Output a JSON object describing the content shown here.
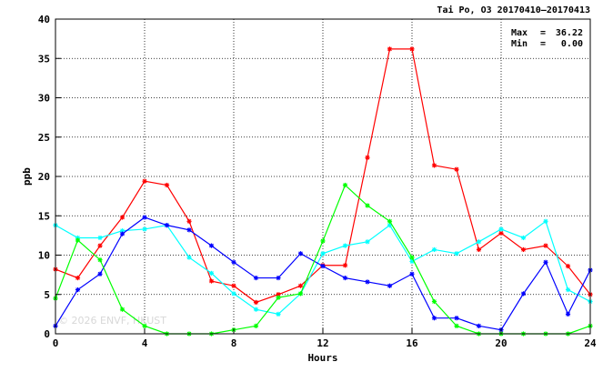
{
  "chart_data": {
    "type": "line",
    "title": "Tai Po, O3 20170410–20170413",
    "xlabel": "Hours",
    "ylabel": "ppb",
    "xlim": [
      0,
      24
    ],
    "ylim": [
      0,
      40
    ],
    "x_ticks": [
      "0",
      "4",
      "8",
      "12",
      "16",
      "20",
      "24"
    ],
    "y_ticks": [
      "0",
      "5",
      "10",
      "15",
      "20",
      "25",
      "30",
      "35",
      "40"
    ],
    "grid": true,
    "stats": {
      "max_label": "Max",
      "max_value": "36.22",
      "min_label": "Min",
      "min_value": "0.00"
    },
    "watermark": "© 2026 ENVF, HKUST",
    "x": [
      0,
      1,
      2,
      3,
      4,
      5,
      6,
      7,
      8,
      9,
      10,
      11,
      12,
      13,
      14,
      15,
      16,
      17,
      18,
      19,
      20,
      21,
      22,
      23,
      24
    ],
    "series": [
      {
        "color": "#ff0000",
        "values": [
          8.2,
          7.1,
          11.2,
          14.8,
          19.4,
          18.9,
          14.3,
          6.7,
          6.1,
          4.0,
          5.0,
          6.1,
          8.7,
          8.7,
          22.4,
          36.2,
          36.2,
          21.4,
          20.9,
          10.7,
          12.8,
          10.7,
          11.2,
          8.6,
          5.0
        ]
      },
      {
        "color": "#00ffff",
        "values": [
          13.8,
          12.2,
          12.2,
          13.1,
          13.3,
          13.8,
          9.7,
          7.7,
          5.1,
          3.1,
          2.5,
          5.1,
          10.2,
          11.2,
          11.7,
          13.8,
          9.2,
          10.7,
          10.2,
          11.7,
          13.3,
          12.2,
          14.3,
          5.6,
          4.1
        ]
      },
      {
        "color": "#0000ff",
        "values": [
          1.0,
          5.6,
          7.6,
          12.7,
          14.8,
          13.8,
          13.2,
          11.2,
          9.1,
          7.1,
          7.1,
          10.2,
          8.6,
          7.1,
          6.6,
          6.1,
          7.6,
          2.0,
          2.0,
          1.0,
          0.5,
          5.1,
          9.1,
          2.5,
          8.1
        ]
      },
      {
        "color": "#00ff00",
        "values": [
          4.5,
          11.9,
          9.4,
          3.1,
          1.0,
          0.0,
          0.0,
          0.0,
          0.5,
          1.0,
          4.6,
          5.1,
          11.8,
          18.9,
          16.3,
          14.3,
          9.7,
          4.1,
          1.0,
          0.0,
          0.0,
          0.0,
          0.0,
          0.0,
          1.0
        ]
      }
    ]
  }
}
